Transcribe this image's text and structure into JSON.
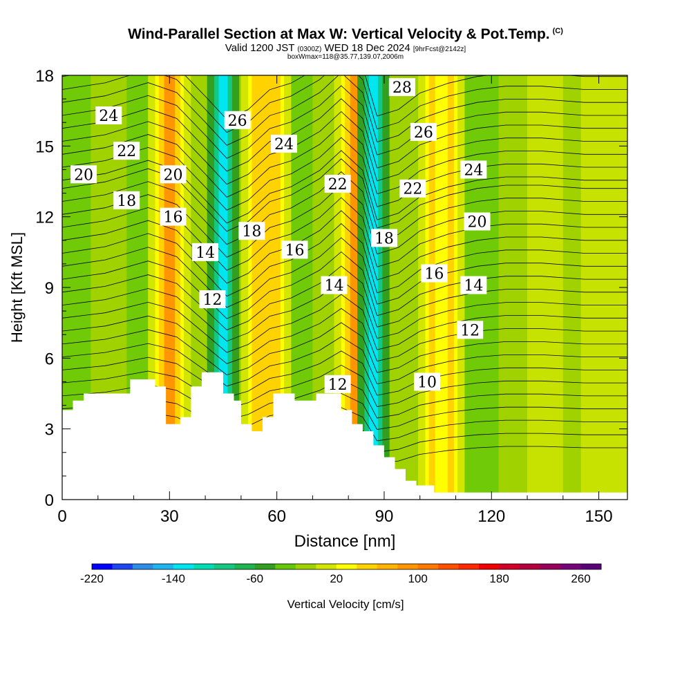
{
  "title": {
    "main": "Wind-Parallel Section at Max W: Vertical Velocity & Pot.Temp.",
    "copyright": "(C)",
    "valid_prefix": "Valid 1200 JST",
    "valid_utc": "(0300Z)",
    "valid_date": "WED 18 Dec 2024",
    "forecast": "[9hrFcst@2142z]",
    "box_info": "boxWmax=118@35.77,139.07,2006m"
  },
  "chart_data": {
    "type": "heatmap",
    "xlabel": "Distance [nm]",
    "ylabel": "Height [Kft MSL]",
    "xlim": [
      0,
      158
    ],
    "ylim": [
      0,
      18
    ],
    "x_ticks": [
      0,
      30,
      60,
      90,
      120,
      150
    ],
    "y_ticks": [
      0,
      3,
      6,
      9,
      12,
      15,
      18
    ],
    "colorbar": {
      "label": "Vertical Velocity [cm/s]",
      "tick_values": [
        -220,
        -140,
        -60,
        20,
        100,
        180,
        260
      ],
      "colors": [
        "#0000ff",
        "#1e46f0",
        "#2d8ce6",
        "#1eb4f0",
        "#00e6f0",
        "#00dcb4",
        "#14c882",
        "#1eb450",
        "#32a01e",
        "#64c80a",
        "#a0d200",
        "#d2e600",
        "#ffff00",
        "#ffd200",
        "#ffb400",
        "#ff9600",
        "#ff7800",
        "#ff5000",
        "#ff2800",
        "#f00000",
        "#d20028",
        "#b4003c",
        "#96005a",
        "#780078",
        "#5a0078"
      ]
    },
    "vertical_velocity_bands": [
      {
        "x_center": 30,
        "value": 140,
        "color": "#ff9600"
      },
      {
        "x_center": 45,
        "value": -150,
        "color": "#00e6f0"
      },
      {
        "x_center": 57,
        "value": 60,
        "color": "#ffd200"
      },
      {
        "x_center": 82,
        "value": 150,
        "color": "#ff9600"
      },
      {
        "x_center": 87,
        "value": -160,
        "color": "#00e6f0"
      },
      {
        "x_center": 106,
        "value": 40,
        "color": "#ffff00"
      }
    ],
    "theta_contours": [
      10,
      12,
      14,
      16,
      18,
      20,
      22,
      24,
      26,
      28
    ],
    "contour_labels": [
      {
        "text": "24",
        "x": 13,
        "y": 16.3
      },
      {
        "text": "22",
        "x": 18,
        "y": 14.8
      },
      {
        "text": "20",
        "x": 6,
        "y": 13.8
      },
      {
        "text": "18",
        "x": 18,
        "y": 12.7
      },
      {
        "text": "20",
        "x": 31,
        "y": 13.8
      },
      {
        "text": "16",
        "x": 31,
        "y": 12.0
      },
      {
        "text": "14",
        "x": 40,
        "y": 10.5
      },
      {
        "text": "12",
        "x": 42,
        "y": 8.5
      },
      {
        "text": "26",
        "x": 49,
        "y": 16.1
      },
      {
        "text": "24",
        "x": 62,
        "y": 15.1
      },
      {
        "text": "18",
        "x": 53,
        "y": 11.4
      },
      {
        "text": "16",
        "x": 65,
        "y": 10.6
      },
      {
        "text": "22",
        "x": 77,
        "y": 13.4
      },
      {
        "text": "14",
        "x": 76,
        "y": 9.1
      },
      {
        "text": "12",
        "x": 77,
        "y": 4.9
      },
      {
        "text": "28",
        "x": 95,
        "y": 17.5
      },
      {
        "text": "26",
        "x": 101,
        "y": 15.6
      },
      {
        "text": "22",
        "x": 98,
        "y": 13.2
      },
      {
        "text": "18",
        "x": 90,
        "y": 11.1
      },
      {
        "text": "24",
        "x": 115,
        "y": 14.0
      },
      {
        "text": "20",
        "x": 116,
        "y": 11.8
      },
      {
        "text": "16",
        "x": 104,
        "y": 9.6
      },
      {
        "text": "14",
        "x": 115,
        "y": 9.1
      },
      {
        "text": "12",
        "x": 114,
        "y": 7.2
      },
      {
        "text": "10",
        "x": 102,
        "y": 5.0
      }
    ],
    "terrain": [
      [
        0,
        3.8
      ],
      [
        3,
        4.2
      ],
      [
        6,
        4.5
      ],
      [
        19,
        5.1
      ],
      [
        26,
        4.8
      ],
      [
        29,
        3.2
      ],
      [
        33,
        3.5
      ],
      [
        36,
        4.8
      ],
      [
        39,
        5.4
      ],
      [
        45,
        4.5
      ],
      [
        48,
        4.2
      ],
      [
        50,
        3.2
      ],
      [
        53,
        2.9
      ],
      [
        56,
        3.5
      ],
      [
        59,
        4.5
      ],
      [
        65,
        4.2
      ],
      [
        71,
        4.5
      ],
      [
        78,
        3.8
      ],
      [
        81,
        3.2
      ],
      [
        84,
        2.9
      ],
      [
        87,
        2.3
      ],
      [
        90,
        1.8
      ],
      [
        93,
        1.3
      ],
      [
        96,
        0.8
      ],
      [
        99,
        0.6
      ],
      [
        102,
        0.6
      ],
      [
        104,
        0.3
      ],
      [
        158,
        0.3
      ]
    ]
  }
}
